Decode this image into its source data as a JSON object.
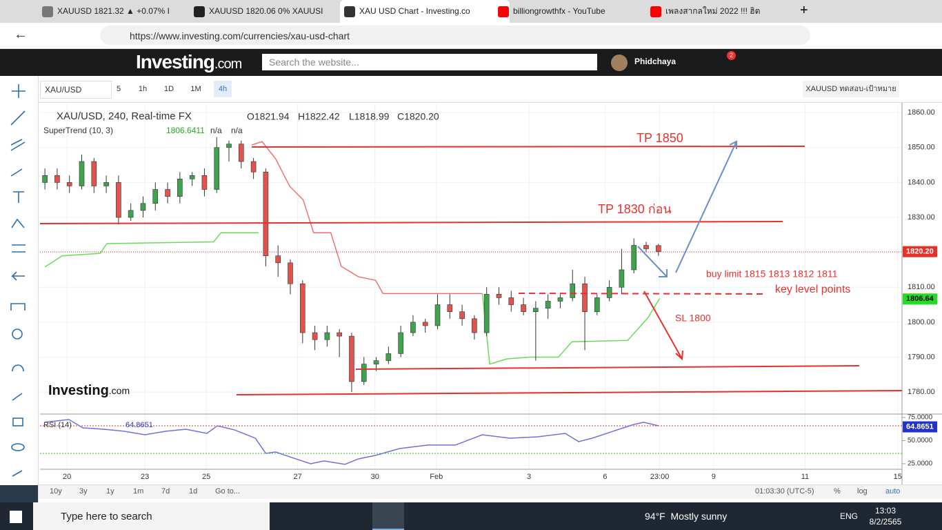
{
  "browser": {
    "tabs": [
      "XAUUSD 1821.32 ▲ +0.07% I",
      "XAUUSD 1820.06 0% XAUUSI",
      "XAU USD Chart - Investing.co",
      "billiongrowthfx - YouTube",
      "เพลงสากลใหม่ 2022 !!! ฮิต"
    ],
    "url": "https://www.investing.com/currencies/xau-usd-chart"
  },
  "site": {
    "logo": "Investing",
    "logo_suffix": ".com",
    "search_placeholder": "Search the website...",
    "user": "Phidchaya",
    "notifications": "2"
  },
  "toolbar": {
    "symbol": "XAU/USD",
    "intervals": [
      "5",
      "1h",
      "1D",
      "1M",
      "4h"
    ],
    "template": "XAUUSD ทดสอบ-เป้าหมาย"
  },
  "chart_header": {
    "title": "XAU/USD, 240, Real-time FX",
    "ohlc": [
      "O1821.94",
      "H1822.42",
      "L1818.99",
      "C1820.20"
    ],
    "indicator": "SuperTrend (10, 3)",
    "indicator_value": "1806.6411",
    "indicator_na": [
      "n/a",
      "n/a"
    ],
    "rsi_label": "RSI (14)",
    "rsi_value": "64.8651"
  },
  "annotations": [
    "TP 1850",
    "TP 1830 ก่อน",
    "buy limit 1815 1813 1812 1811",
    "key level points",
    "SL 1800"
  ],
  "watermark": {
    "logo": "Investing",
    "suffix": ".com"
  },
  "bottom_bar": {
    "ranges": [
      "10y",
      "3y",
      "1y",
      "1m",
      "7d",
      "1d",
      "Go to..."
    ],
    "time": "01:03:30 (UTC-5)",
    "options": [
      "%",
      "log",
      "auto"
    ]
  },
  "taskbar": {
    "search": "Type here to search",
    "temperature": "94°F",
    "weather": "Mostly sunny",
    "language": "ENG",
    "time": "13:03",
    "date": "8/2/2565"
  },
  "chart_data": {
    "type": "candlestick",
    "up_color": "#3fa34d",
    "down_color": "#e0534f",
    "xlim": [
      -0.8,
      139.7
    ],
    "xticks": [
      {
        "value": 3.6,
        "label": "20"
      },
      {
        "value": 16.3,
        "label": "23"
      },
      {
        "value": 26.3,
        "label": "25"
      },
      {
        "value": 41.2,
        "label": "27"
      },
      {
        "value": 53.8,
        "label": "30"
      },
      {
        "value": 63.8,
        "label": "Feb"
      },
      {
        "value": 78.9,
        "label": "3"
      },
      {
        "value": 91.3,
        "label": "6"
      },
      {
        "value": 100.2,
        "label": "23:00"
      },
      {
        "value": 109,
        "label": "9"
      },
      {
        "value": 123.9,
        "label": "11"
      },
      {
        "value": 139,
        "label": "15"
      }
    ],
    "ylim": [
      1773.7,
      1862.6
    ],
    "yticks": [
      {
        "value": 1780,
        "label": "1780.00"
      },
      {
        "value": 1790,
        "label": "1790.00"
      },
      {
        "value": 1800,
        "label": "1800.00"
      },
      {
        "value": 1810,
        "label": "1810.00"
      },
      {
        "value": 1820,
        "label": "1820.00"
      },
      {
        "value": 1830,
        "label": "1830.00"
      },
      {
        "value": 1840,
        "label": "1840.00"
      },
      {
        "value": 1850,
        "label": "1850.00"
      },
      {
        "value": 1860,
        "label": "1860.00"
      }
    ],
    "candle_x": [
      0,
      2,
      4,
      6,
      8,
      10,
      12,
      14,
      16,
      18,
      20,
      22,
      24,
      26,
      28,
      30,
      32,
      34,
      36,
      38,
      40,
      42,
      44,
      46,
      48,
      50,
      52,
      54,
      56,
      58,
      60,
      62,
      64,
      66,
      68,
      70,
      72,
      74,
      76,
      78,
      80,
      82,
      84,
      86,
      88,
      90,
      92,
      94,
      96,
      98,
      100
    ],
    "candles": [
      [
        1840,
        1844,
        1838,
        1842
      ],
      [
        1842,
        1844,
        1838,
        1840
      ],
      [
        1840,
        1842,
        1837,
        1839
      ],
      [
        1839,
        1848,
        1838,
        1846
      ],
      [
        1846,
        1847,
        1837,
        1839
      ],
      [
        1839,
        1842,
        1837,
        1840
      ],
      [
        1840,
        1842,
        1828,
        1830
      ],
      [
        1830,
        1834,
        1829,
        1832
      ],
      [
        1832,
        1836,
        1830,
        1834
      ],
      [
        1834,
        1840,
        1832,
        1838
      ],
      [
        1838,
        1840,
        1834,
        1836
      ],
      [
        1836,
        1843,
        1834,
        1841
      ],
      [
        1841,
        1843,
        1839,
        1842
      ],
      [
        1842,
        1844,
        1836,
        1838
      ],
      [
        1838,
        1853,
        1837,
        1850
      ],
      [
        1850,
        1852,
        1846,
        1851
      ],
      [
        1851,
        1852,
        1844,
        1846
      ],
      [
        1846,
        1847,
        1841,
        1843
      ],
      [
        1843,
        1844,
        1816,
        1819
      ],
      [
        1819,
        1822,
        1813,
        1817
      ],
      [
        1817,
        1818,
        1808,
        1811
      ],
      [
        1811,
        1812,
        1794,
        1797
      ],
      [
        1797,
        1799,
        1792,
        1795
      ],
      [
        1795,
        1799,
        1793,
        1797
      ],
      [
        1797,
        1798,
        1790,
        1796
      ],
      [
        1796,
        1797,
        1780,
        1783
      ],
      [
        1783,
        1790,
        1782,
        1788
      ],
      [
        1788,
        1790,
        1786,
        1789
      ],
      [
        1789,
        1793,
        1788,
        1791
      ],
      [
        1791,
        1799,
        1790,
        1797
      ],
      [
        1797,
        1802,
        1796,
        1800
      ],
      [
        1800,
        1801,
        1797,
        1799
      ],
      [
        1799,
        1808,
        1798,
        1805
      ],
      [
        1805,
        1808,
        1801,
        1803
      ],
      [
        1803,
        1805,
        1799,
        1801
      ],
      [
        1801,
        1802,
        1795,
        1797
      ],
      [
        1797,
        1810,
        1796,
        1808
      ],
      [
        1808,
        1810,
        1805,
        1807
      ],
      [
        1807,
        1809,
        1803,
        1805
      ],
      [
        1805,
        1807,
        1802,
        1803
      ],
      [
        1803,
        1806,
        1789,
        1804
      ],
      [
        1804,
        1808,
        1801,
        1806
      ],
      [
        1806,
        1808,
        1804,
        1807
      ],
      [
        1807,
        1815,
        1806,
        1811
      ],
      [
        1811,
        1813,
        1792,
        1803
      ],
      [
        1803,
        1808,
        1802,
        1807
      ],
      [
        1807,
        1812,
        1806,
        1810
      ],
      [
        1810,
        1821,
        1808,
        1815
      ],
      [
        1815,
        1824,
        1814,
        1822
      ],
      [
        1822,
        1823,
        1820,
        1821
      ],
      [
        1821.94,
        1822.42,
        1818.99,
        1820.2
      ]
    ],
    "supertrend": [
      {
        "color": "#66dd55",
        "x": [
          0,
          2.8,
          9,
          10.1,
          27.5,
          28.7,
          34.8
        ],
        "values": [
          1815.8,
          1819,
          1819.7,
          1822.5,
          1823,
          1825.6,
          1825.6
        ]
      },
      {
        "color": "#f07070",
        "x": [
          33.7,
          35.4,
          37.6,
          39.9,
          42.1,
          43.8,
          46.6,
          48.3,
          51.1,
          53.9,
          55.1,
          71.3
        ],
        "values": [
          1850.7,
          1851.7,
          1846.8,
          1838.9,
          1835,
          1825.6,
          1825.6,
          1816,
          1813,
          1812,
          1808.2,
          1808.2
        ]
      },
      {
        "color": "#66dd55",
        "x": [
          71.3,
          72.5,
          75.3,
          79.2,
          83.7,
          85.9,
          95,
          98.3,
          100.2
        ],
        "values": [
          1808.2,
          1788,
          1789.5,
          1790,
          1790,
          1794.4,
          1794.8,
          1801.3,
          1806.8
        ]
      }
    ],
    "price_labels": [
      {
        "value": 1820.2,
        "label": "1820.20",
        "color": "#e8302a"
      },
      {
        "value": 1806.64,
        "label": "1806.64",
        "color": "#22dd22"
      }
    ],
    "rsi": {
      "color": "#6f6fe0",
      "ylim": [
        19,
        78.7
      ],
      "yticks": [
        {
          "value": 75,
          "label": "75.0000"
        },
        {
          "value": 50,
          "label": "50.0000"
        },
        {
          "value": 25,
          "label": "25.0000"
        }
      ],
      "x": [
        0,
        3.9,
        6.2,
        9.6,
        12.9,
        16.3,
        19.7,
        23,
        26.4,
        28.1,
        30.9,
        34.3,
        36,
        37.6,
        39.9,
        43.3,
        45.5,
        48.9,
        51.1,
        53.9,
        57.8,
        62.4,
        66.9,
        71.3,
        75.8,
        80.3,
        84.8,
        87,
        89.2,
        92.6,
        96,
        97.6,
        100
      ],
      "values": [
        69.8,
        72.8,
        63.8,
        62.3,
        60.1,
        56.3,
        60.1,
        62.3,
        57.8,
        66.0,
        61.6,
        52.6,
        36.2,
        37.7,
        32.5,
        25.0,
        28.0,
        24.3,
        30.2,
        34.0,
        41.4,
        45.2,
        45.2,
        56.3,
        52.6,
        54.1,
        57.8,
        48.9,
        52.6,
        60.1,
        67.5,
        69.8,
        66.0
      ],
      "last": {
        "value": 64.8651,
        "label": "64.8651"
      }
    }
  }
}
